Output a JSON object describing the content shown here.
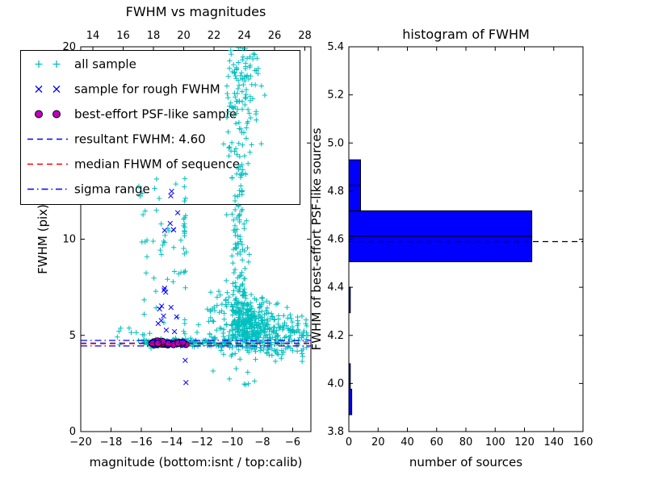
{
  "figure": {
    "background": "#ffffff",
    "frame_color": "#000000"
  },
  "chart_data": [
    {
      "id": "fwhm_vs_magnitudes",
      "type": "scatter",
      "title": "FWHM vs magnitudes",
      "xlabel": "magnitude (bottom:isnt / top:calib)",
      "ylabel": "FWHM (pix)",
      "xlim": [
        -20,
        -4.8
      ],
      "top_xlim": [
        13.2,
        28.4
      ],
      "ylim": [
        0,
        20
      ],
      "x_ticks_bottom": [
        -20,
        -18,
        -16,
        -14,
        -12,
        -10,
        -8,
        -6
      ],
      "x_ticks_top": [
        14,
        16,
        18,
        20,
        22,
        24,
        26,
        28
      ],
      "y_ticks": [
        0,
        5,
        10,
        15,
        20
      ],
      "series": [
        {
          "name": "all sample",
          "marker": "plus",
          "color": "#00bfbf",
          "clusters": [
            {
              "n": 160,
              "x": {
                "dist": "uniform",
                "min": -15.85,
                "max": -12.3
              },
              "y": {
                "dist": "normal",
                "mu": 4.62,
                "sigma": 0.09,
                "min": 4.3,
                "max": 5.0
              }
            },
            {
              "n": 55,
              "x": {
                "dist": "uniform",
                "min": -12.3,
                "max": -10.1
              },
              "y": {
                "dist": "normal",
                "mu": 4.6,
                "sigma": 0.13,
                "min": 4.25,
                "max": 5.05
              }
            },
            {
              "n": 340,
              "x": {
                "dist": "normal",
                "mu": -8.9,
                "sigma": 0.8,
                "min": -11.2,
                "max": -6.0
              },
              "y": {
                "dist": "normal",
                "mu": 5.4,
                "sigma": 0.9,
                "min": 4.2,
                "max": 8.6
              }
            },
            {
              "n": 130,
              "x": {
                "dist": "normal",
                "mu": -9.55,
                "sigma": 0.3,
                "min": -10.5,
                "max": -8.6
              },
              "y": {
                "dist": "uniform",
                "min": 5.0,
                "max": 13.8
              }
            },
            {
              "n": 90,
              "x": {
                "dist": "normal",
                "mu": -9.2,
                "sigma": 0.6,
                "min": -10.7,
                "max": -7.5
              },
              "y": {
                "dist": "uniform",
                "min": 16.3,
                "max": 20.0
              }
            },
            {
              "n": 30,
              "x": {
                "dist": "normal",
                "mu": -9.4,
                "sigma": 0.7,
                "min": -11.0,
                "max": -7.4
              },
              "y": {
                "dist": "uniform",
                "min": 13.8,
                "max": 16.3
              }
            },
            {
              "n": 38,
              "x": {
                "dist": "uniform",
                "min": -16.0,
                "max": -13.2
              },
              "y": {
                "dist": "uniform",
                "min": 5.0,
                "max": 13.3
              }
            },
            {
              "n": 26,
              "x": {
                "dist": "normal",
                "mu": -13.15,
                "sigma": 0.05
              },
              "y": {
                "dist": "uniform",
                "min": 4.8,
                "max": 13.2
              }
            },
            {
              "n": 115,
              "x": {
                "dist": "uniform",
                "min": -8.0,
                "max": -5.0
              },
              "y": {
                "dist": "normal",
                "mu": 5.0,
                "sigma": 0.65,
                "min": 3.9,
                "max": 7.3
              }
            },
            {
              "n": 22,
              "x": {
                "dist": "uniform",
                "min": -10.6,
                "max": -5.3
              },
              "y": {
                "dist": "uniform",
                "min": 3.55,
                "max": 4.25
              }
            },
            {
              "n": 30,
              "x": {
                "dist": "uniform",
                "min": -12.4,
                "max": -10.2
              },
              "y": {
                "dist": "normal",
                "mu": 5.8,
                "sigma": 1.1,
                "min": 4.3,
                "max": 9.0
              }
            },
            {
              "n": 8,
              "x": {
                "dist": "uniform",
                "min": -17.6,
                "max": -16.1
              },
              "y": {
                "dist": "uniform",
                "min": 4.3,
                "max": 5.6
              }
            },
            {
              "n": 4,
              "x": {
                "dist": "uniform",
                "min": -16.3,
                "max": -15.7
              },
              "y": {
                "dist": "uniform",
                "min": 11.4,
                "max": 13.3
              }
            },
            {
              "n": 8,
              "x": {
                "dist": "normal",
                "mu": -9.5,
                "sigma": 0.6
              },
              "y": {
                "dist": "uniform",
                "min": 2.1,
                "max": 3.5
              }
            }
          ]
        },
        {
          "name": "sample for rough FWHM",
          "marker": "x",
          "color": "#0000ff",
          "clusters": [
            {
              "n": 12,
              "x": {
                "dist": "normal",
                "mu": -14.3,
                "sigma": 0.5,
                "min": -15.2,
                "max": -13.3
              },
              "y": {
                "dist": "normal",
                "mu": 5.7,
                "sigma": 1.0,
                "min": 4.6,
                "max": 7.8
              }
            },
            {
              "n": 7,
              "x": {
                "dist": "normal",
                "mu": -13.9,
                "sigma": 0.35,
                "min": -14.6,
                "max": -13.3
              },
              "y": {
                "dist": "uniform",
                "min": 9.3,
                "max": 12.6
              }
            },
            {
              "n": 8,
              "x": {
                "dist": "uniform",
                "min": -14.9,
                "max": -13.1
              },
              "y": {
                "dist": "normal",
                "mu": 4.62,
                "sigma": 0.05
              }
            }
          ],
          "points": [
            [
              -13.1,
              3.7
            ],
            [
              -13.05,
              2.55
            ]
          ]
        },
        {
          "name": "best-effort PSF-like sample",
          "marker": "circle",
          "color": "#bf00bf",
          "edge_color": "#000000",
          "clusters": [
            {
              "n": 30,
              "x": {
                "dist": "uniform",
                "min": -15.35,
                "max": -12.9
              },
              "y": {
                "dist": "normal",
                "mu": 4.6,
                "sigma": 0.05,
                "min": 4.48,
                "max": 4.72
              }
            }
          ]
        }
      ],
      "lines": [
        {
          "name": "resultant FWHM",
          "value": 4.6,
          "color": "#0000ff",
          "style": "dashed"
        },
        {
          "name": "median FHWM of sequence",
          "value": 4.57,
          "color": "#ff0000",
          "style": "dashed"
        },
        {
          "name": "sigma range low",
          "value": 4.45,
          "color": "#0000ff",
          "style": "dashdot"
        },
        {
          "name": "sigma range high",
          "value": 4.74,
          "color": "#0000ff",
          "style": "dashdot"
        }
      ],
      "legend": [
        {
          "label": "all sample",
          "marker": "plus",
          "color": "#00bfbf"
        },
        {
          "label": "sample for rough FWHM",
          "marker": "x",
          "color": "#0000ff"
        },
        {
          "label": "best-effort PSF-like sample",
          "marker": "circle",
          "color": "#bf00bf"
        },
        {
          "label": "resultant FWHM: 4.60",
          "marker": "dashed-line",
          "color": "#0000ff"
        },
        {
          "label": "median FHWM of sequence",
          "marker": "dashed-line",
          "color": "#ff0000"
        },
        {
          "label": "sigma range",
          "marker": "dashdot-line",
          "color": "#0000ff"
        }
      ]
    },
    {
      "id": "histogram_of_fwhm",
      "type": "bar",
      "orientation": "horizontal",
      "title": "histogram of FWHM",
      "xlabel": "number of sources",
      "ylabel": "FWHM of best-effort PSF-like sources",
      "xlim": [
        0,
        160
      ],
      "ylim": [
        3.8,
        5.4
      ],
      "x_ticks": [
        0,
        20,
        40,
        60,
        80,
        100,
        120,
        140,
        160
      ],
      "y_ticks": [
        3.8,
        4.0,
        4.2,
        4.4,
        4.6,
        4.8,
        5.0,
        5.2,
        5.4
      ],
      "bar_color": "#0000ff",
      "bar_edge_color": "#000000",
      "bin_edges": [
        3.87,
        3.976,
        4.082,
        4.188,
        4.294,
        4.4,
        4.506,
        4.612,
        4.718,
        4.824,
        4.93
      ],
      "counts": [
        2,
        1,
        0,
        0,
        1,
        0,
        125,
        125,
        8,
        8
      ],
      "median_line": {
        "value": 4.59,
        "color": "#000000",
        "style": "dashed"
      }
    }
  ]
}
